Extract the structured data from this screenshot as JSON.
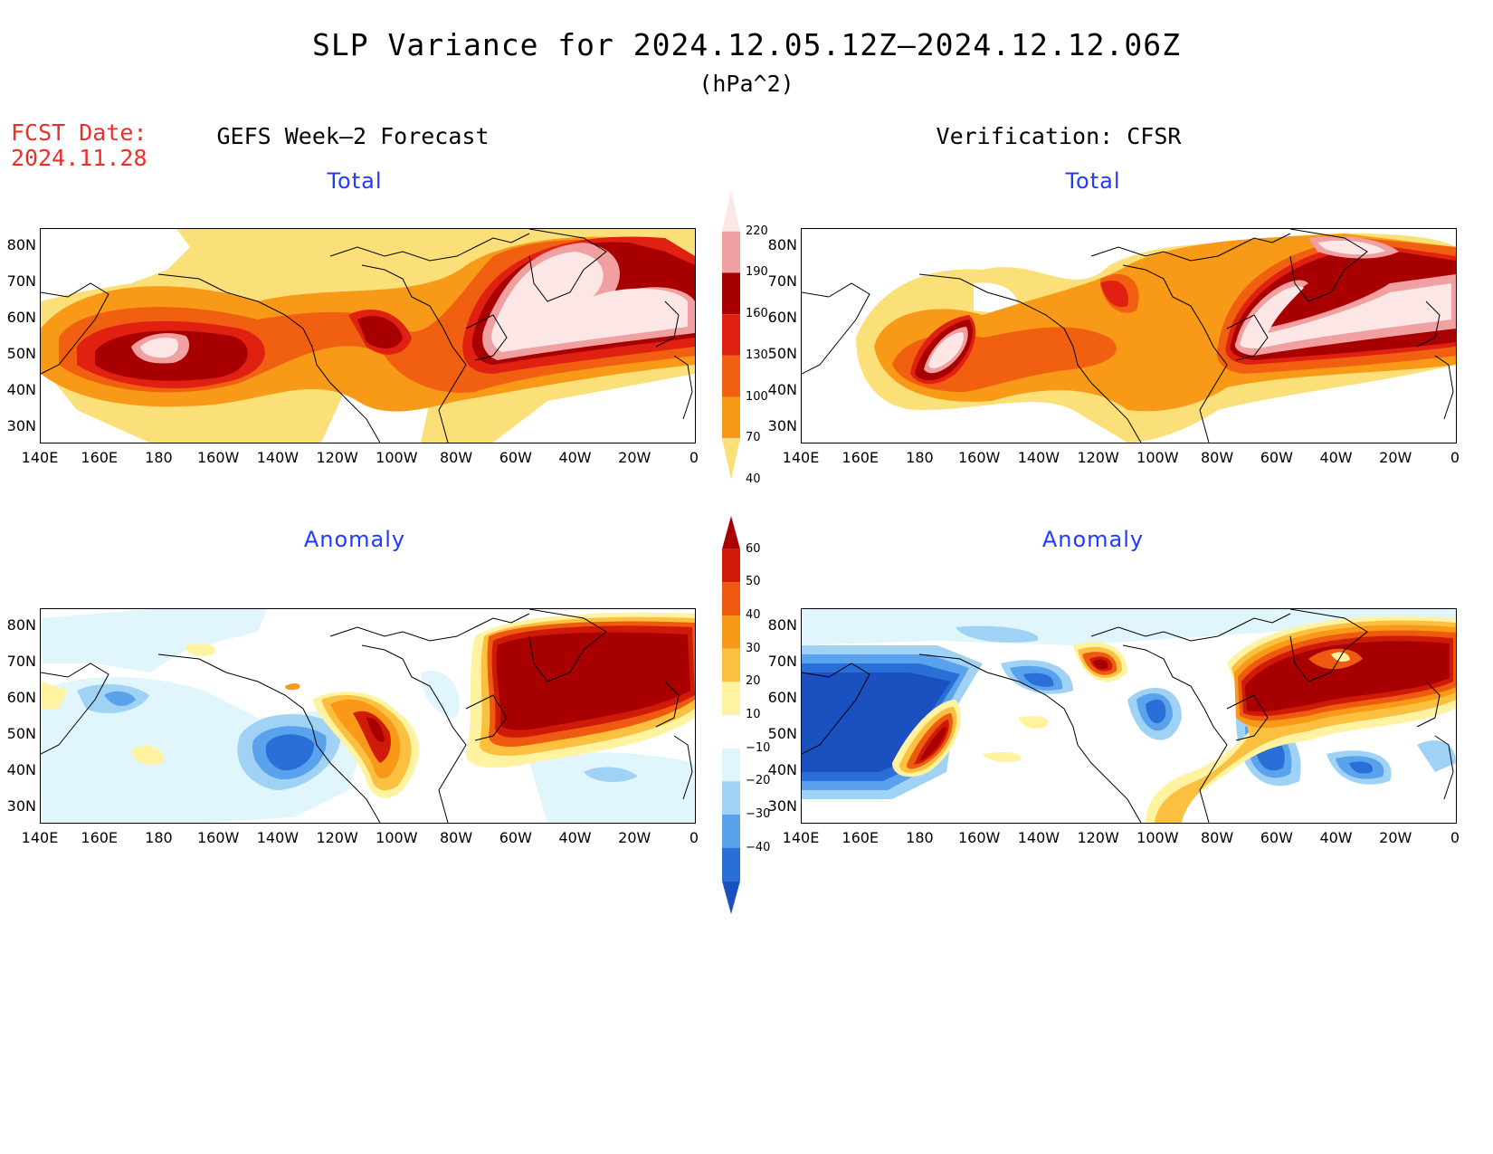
{
  "title": "SLP Variance for 2024.12.05.12Z–2024.12.12.06Z",
  "units": "(hPa^2)",
  "fcst_label": "FCST Date:",
  "fcst_date": "2024.11.28",
  "left_header": "GEFS Week–2 Forecast",
  "right_header": "Verification: CFSR",
  "panels": {
    "tl": "Total",
    "tr": "Total",
    "bl": "Anomaly",
    "br": "Anomaly"
  },
  "lat_ticks": [
    "80N",
    "70N",
    "60N",
    "50N",
    "40N",
    "30N"
  ],
  "lon_ticks": [
    "140E",
    "160E",
    "180",
    "160W",
    "140W",
    "120W",
    "100W",
    "80W",
    "60W",
    "40W",
    "20W",
    "0"
  ],
  "total_colorbar": {
    "levels": [
      "220",
      "190",
      "160",
      "130",
      "100",
      "70",
      "40"
    ],
    "colors": [
      "#fde6e6",
      "#f0a0a0",
      "#a80000",
      "#e02010",
      "#f06010",
      "#f89a18",
      "#fbe07a"
    ]
  },
  "anomaly_colorbar": {
    "levels": [
      "60",
      "50",
      "40",
      "30",
      "20",
      "10",
      "−10",
      "−20",
      "−30",
      "−40"
    ],
    "colors": [
      "#a80000",
      "#d01a08",
      "#ee5a10",
      "#f89a18",
      "#fbc040",
      "#fff2a0",
      "#ffffff",
      "#e0f6fc",
      "#a0d2f6",
      "#5aa2ec",
      "#2a6ed8",
      "#1a50c0"
    ]
  }
}
